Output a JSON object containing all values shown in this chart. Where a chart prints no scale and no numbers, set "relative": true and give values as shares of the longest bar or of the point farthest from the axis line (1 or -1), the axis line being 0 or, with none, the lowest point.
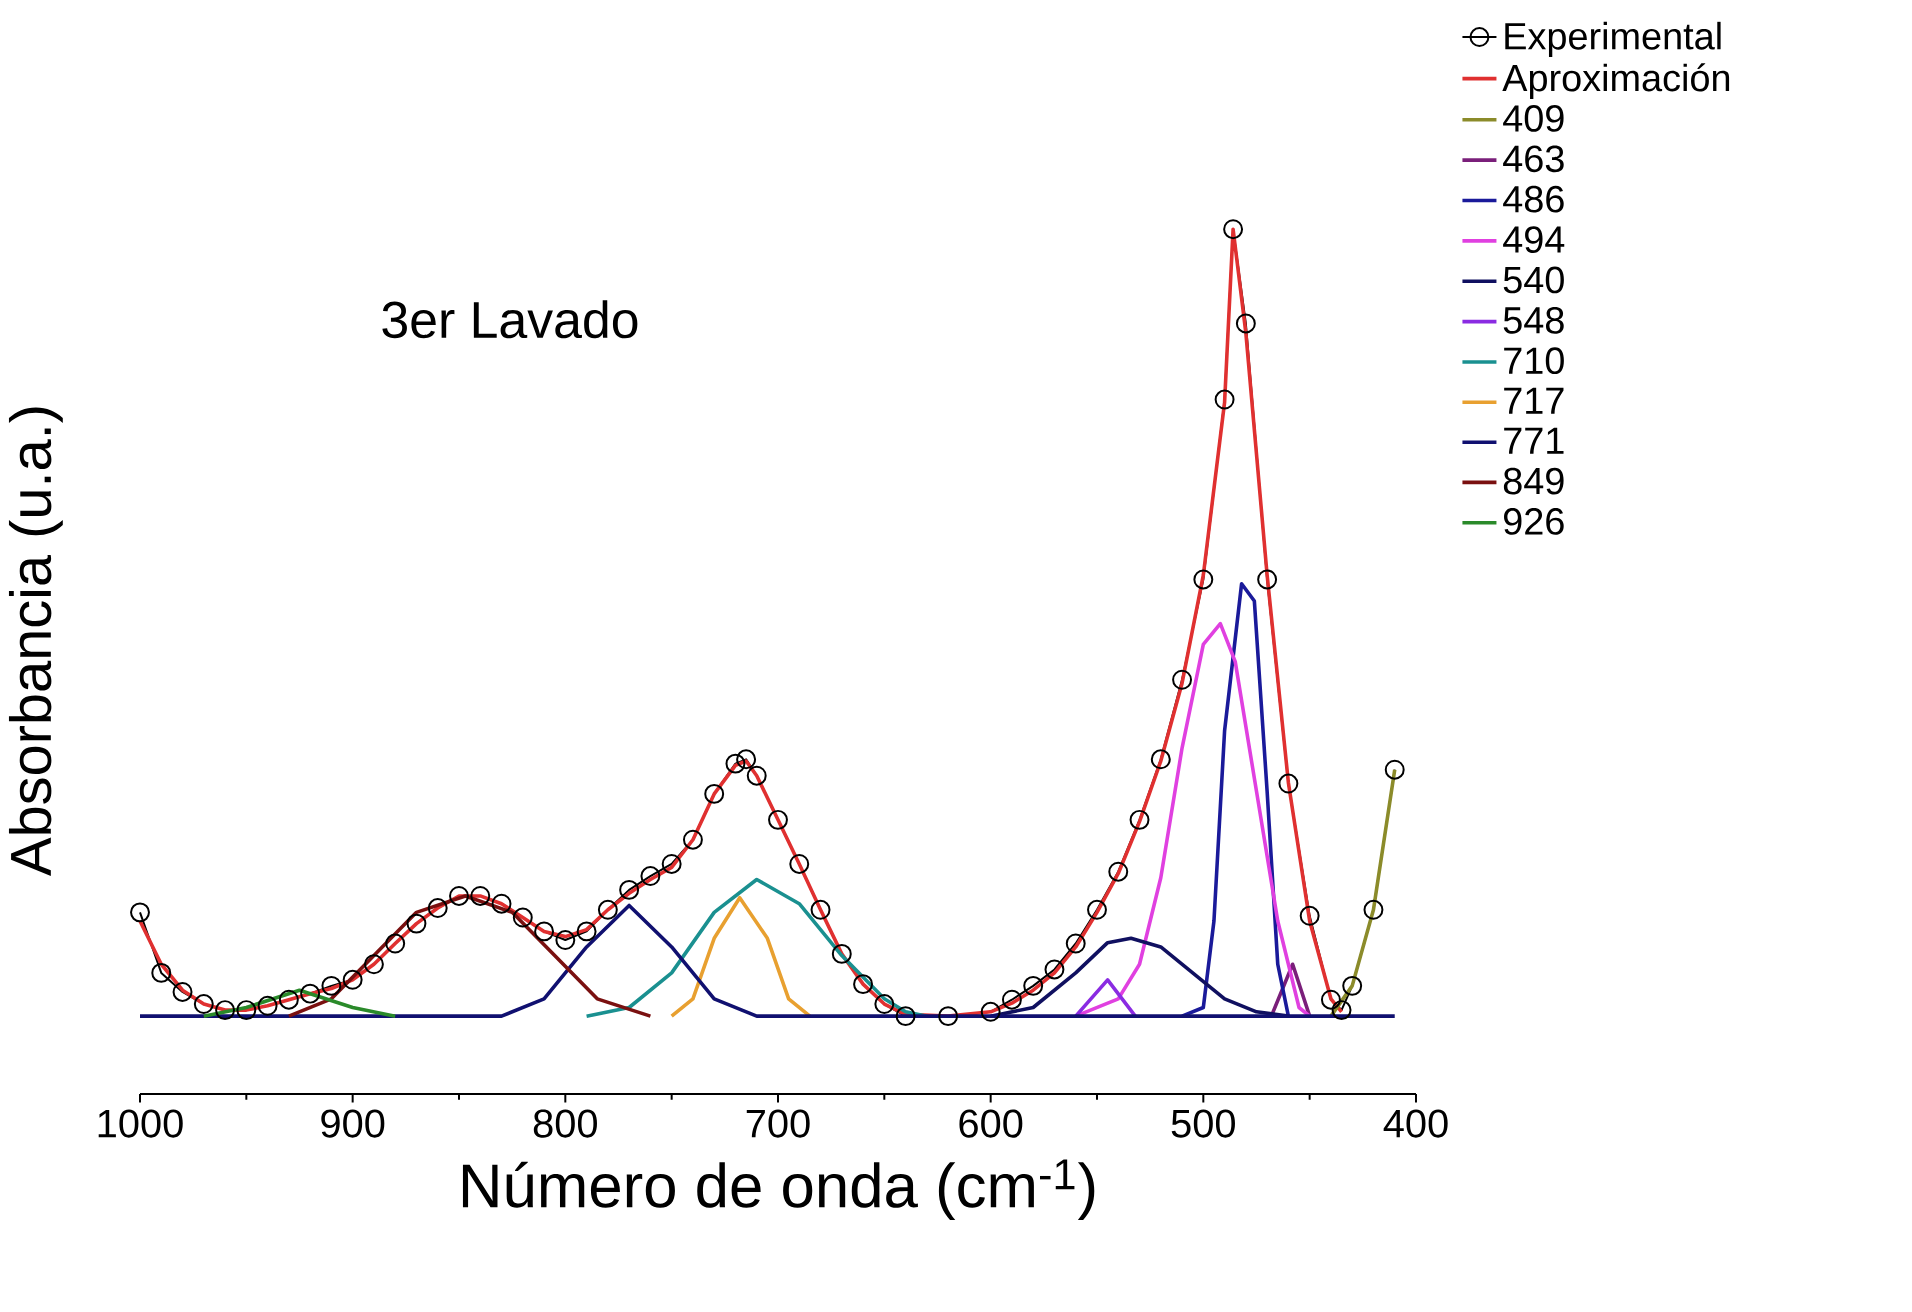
{
  "chart_data": {
    "type": "line",
    "title": "3er Lavado",
    "xlabel": "Número de onda (cm$^{-1}$)",
    "ylabel": "Absorbancia (u.a.)",
    "relative": true,
    "xlim": [
      1000,
      400
    ],
    "xticks": [
      1000,
      900,
      800,
      700,
      600,
      500,
      400
    ],
    "legend": "top right",
    "marker": "none",
    "line_style": "solid",
    "series": [
      {
        "name": "Experimental",
        "color": "#000000",
        "marker": "circle",
        "x": [
          1000,
          990,
          980,
          970,
          960,
          950,
          940,
          930,
          920,
          910,
          900,
          890,
          880,
          870,
          860,
          850,
          840,
          830,
          820,
          810,
          800,
          790,
          780,
          770,
          760,
          750,
          740,
          730,
          720,
          715,
          710,
          700,
          690,
          680,
          670,
          660,
          650,
          640,
          620,
          600,
          590,
          580,
          570,
          560,
          550,
          540,
          530,
          520,
          510,
          500,
          490,
          486,
          480,
          470,
          460,
          450,
          440,
          435,
          430,
          420,
          410
        ],
        "values": [
          0.21,
          0.14,
          0.118,
          0.104,
          0.097,
          0.097,
          0.102,
          0.109,
          0.116,
          0.125,
          0.132,
          0.15,
          0.174,
          0.197,
          0.215,
          0.229,
          0.229,
          0.22,
          0.204,
          0.188,
          0.178,
          0.188,
          0.213,
          0.236,
          0.252,
          0.266,
          0.294,
          0.347,
          0.382,
          0.387,
          0.368,
          0.317,
          0.266,
          0.213,
          0.162,
          0.127,
          0.104,
          0.09,
          0.09,
          0.095,
          0.109,
          0.125,
          0.144,
          0.174,
          0.213,
          0.257,
          0.317,
          0.387,
          0.479,
          0.595,
          0.803,
          1.0,
          0.891,
          0.595,
          0.359,
          0.206,
          0.109,
          0.097,
          0.125,
          0.213,
          0.375
        ]
      },
      {
        "name": "Aproximación",
        "color": "#e03030",
        "x": [
          1000,
          990,
          980,
          970,
          960,
          950,
          940,
          930,
          920,
          910,
          900,
          890,
          880,
          870,
          860,
          850,
          840,
          830,
          820,
          810,
          800,
          790,
          780,
          770,
          760,
          750,
          740,
          730,
          720,
          715,
          710,
          700,
          690,
          680,
          670,
          660,
          650,
          640,
          620,
          600,
          590,
          580,
          570,
          560,
          550,
          540,
          530,
          520,
          510,
          500,
          490,
          486,
          480,
          470,
          460,
          450,
          440,
          435
        ],
        "values": [
          0.2,
          0.15,
          0.12,
          0.104,
          0.097,
          0.097,
          0.102,
          0.109,
          0.116,
          0.122,
          0.132,
          0.15,
          0.174,
          0.197,
          0.215,
          0.229,
          0.229,
          0.22,
          0.204,
          0.188,
          0.182,
          0.19,
          0.213,
          0.232,
          0.248,
          0.262,
          0.294,
          0.347,
          0.38,
          0.385,
          0.368,
          0.317,
          0.266,
          0.213,
          0.162,
          0.127,
          0.104,
          0.092,
          0.09,
          0.095,
          0.105,
          0.12,
          0.14,
          0.17,
          0.21,
          0.255,
          0.315,
          0.385,
          0.475,
          0.6,
          0.8,
          1.0,
          0.88,
          0.6,
          0.36,
          0.2,
          0.11,
          0.095
        ]
      },
      {
        "name": "409",
        "color": "#8b8b2a",
        "x": [
          440,
          430,
          420,
          410
        ],
        "values": [
          0.09,
          0.125,
          0.213,
          0.375
        ]
      },
      {
        "name": "463",
        "color": "#7a1f7a",
        "x": [
          468,
          458,
          450
        ],
        "values": [
          0.09,
          0.15,
          0.09
        ]
      },
      {
        "name": "486",
        "color": "#1a1a9a",
        "x": [
          510,
          500,
          495,
          490,
          482,
          476,
          470,
          465,
          460
        ],
        "values": [
          0.09,
          0.1,
          0.2,
          0.42,
          0.59,
          0.57,
          0.35,
          0.15,
          0.09
        ]
      },
      {
        "name": "494",
        "color": "#e040e0",
        "x": [
          560,
          540,
          530,
          520,
          510,
          500,
          492,
          485,
          475,
          465,
          455,
          450
        ],
        "values": [
          0.09,
          0.11,
          0.15,
          0.25,
          0.4,
          0.52,
          0.544,
          0.5,
          0.35,
          0.2,
          0.1,
          0.09
        ]
      },
      {
        "name": "540",
        "color": "#101060",
        "x": [
          600,
          580,
          560,
          545,
          534,
          520,
          505,
          490,
          475,
          460
        ],
        "values": [
          0.09,
          0.1,
          0.14,
          0.175,
          0.18,
          0.17,
          0.14,
          0.11,
          0.095,
          0.09
        ]
      },
      {
        "name": "548",
        "color": "#8a2be2",
        "x": [
          560,
          545,
          532
        ],
        "values": [
          0.09,
          0.132,
          0.09
        ]
      },
      {
        "name": "710",
        "color": "#1a9090",
        "x": [
          790,
          770,
          750,
          730,
          710,
          690,
          670,
          650,
          640,
          630
        ],
        "values": [
          0.09,
          0.1,
          0.14,
          0.21,
          0.248,
          0.22,
          0.16,
          0.11,
          0.095,
          0.09
        ]
      },
      {
        "name": "717",
        "color": "#e8a030",
        "x": [
          750,
          740,
          730,
          718,
          705,
          695,
          685
        ],
        "values": [
          0.09,
          0.11,
          0.18,
          0.227,
          0.18,
          0.11,
          0.09
        ]
      },
      {
        "name": "771",
        "color": "#101070",
        "x": [
          1000,
          830,
          810,
          790,
          770,
          750,
          730,
          710,
          410
        ],
        "values": [
          0.09,
          0.09,
          0.11,
          0.17,
          0.218,
          0.17,
          0.11,
          0.09,
          0.09
        ]
      },
      {
        "name": "849",
        "color": "#7a1010",
        "x": [
          930,
          910,
          890,
          870,
          847,
          825,
          805,
          785,
          760
        ],
        "values": [
          0.09,
          0.11,
          0.16,
          0.21,
          0.229,
          0.21,
          0.16,
          0.11,
          0.09
        ]
      },
      {
        "name": "926",
        "color": "#2a8a2a",
        "x": [
          970,
          950,
          925,
          900,
          880
        ],
        "values": [
          0.09,
          0.1,
          0.12,
          0.1,
          0.09
        ]
      }
    ]
  }
}
